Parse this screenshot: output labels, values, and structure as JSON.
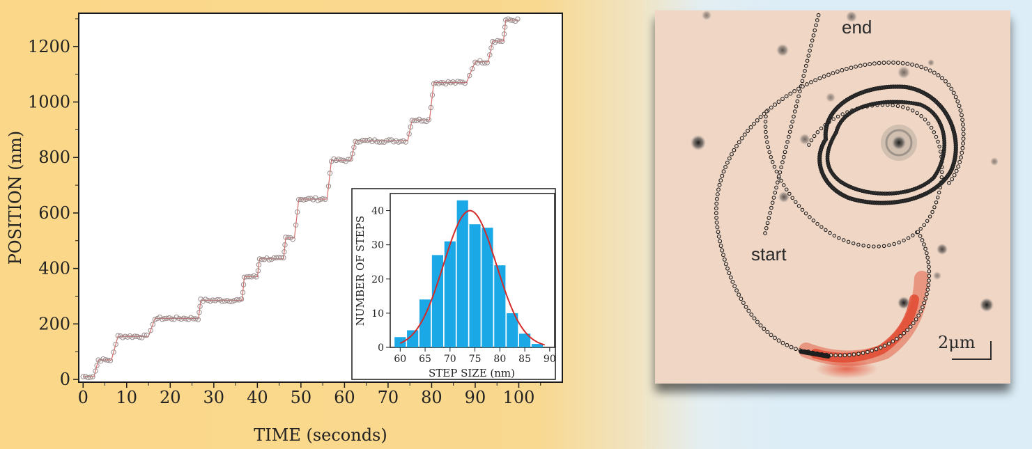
{
  "chart_data": [
    {
      "type": "scatter",
      "xlabel": "TIME (seconds)",
      "ylabel": "POSITION (nm)",
      "xlim": [
        -1,
        110
      ],
      "ylim": [
        -10,
        1320
      ],
      "xticks": [
        0,
        10,
        20,
        30,
        40,
        50,
        60,
        70,
        80,
        90,
        100
      ],
      "yticks": [
        0,
        200,
        400,
        600,
        800,
        1000,
        1200
      ],
      "colors": {
        "points": "#9a8a8a",
        "fit": "#d96a6a"
      },
      "plateaus": [
        {
          "t_start": 0,
          "t_end": 2.5,
          "position": 10
        },
        {
          "t_start": 3.5,
          "t_end": 6.5,
          "position": 70
        },
        {
          "t_start": 8,
          "t_end": 15,
          "position": 155
        },
        {
          "t_start": 16.5,
          "t_end": 26.5,
          "position": 220
        },
        {
          "t_start": 27,
          "t_end": 36.5,
          "position": 285
        },
        {
          "t_start": 37,
          "t_end": 40,
          "position": 370
        },
        {
          "t_start": 40.5,
          "t_end": 46,
          "position": 435
        },
        {
          "t_start": 46.5,
          "t_end": 48.5,
          "position": 510
        },
        {
          "t_start": 49.5,
          "t_end": 56,
          "position": 650
        },
        {
          "t_start": 57,
          "t_end": 61.5,
          "position": 790
        },
        {
          "t_start": 62.5,
          "t_end": 74.5,
          "position": 860
        },
        {
          "t_start": 75.5,
          "t_end": 79.5,
          "position": 935
        },
        {
          "t_start": 80.5,
          "t_end": 88,
          "position": 1070
        },
        {
          "t_start": 90,
          "t_end": 93,
          "position": 1145
        },
        {
          "t_start": 94,
          "t_end": 96.5,
          "position": 1220
        },
        {
          "t_start": 97,
          "t_end": 100,
          "position": 1295
        }
      ],
      "inset": {
        "type": "bar",
        "xlabel": "STEP SIZE (nm)",
        "ylabel": "NUMBER OF STEPS",
        "xlim": [
          58,
          91
        ],
        "ylim": [
          0,
          45
        ],
        "xticks": [
          60,
          65,
          70,
          75,
          80,
          85,
          90
        ],
        "yticks": [
          0,
          10,
          20,
          30,
          40
        ],
        "bar_width": 2.5,
        "bar_centers": [
          60,
          62.5,
          65,
          67.5,
          70,
          72.5,
          75,
          77.5,
          80,
          82.5,
          85,
          87.5
        ],
        "values": [
          3,
          5,
          14,
          27,
          31,
          43,
          36,
          35,
          24,
          10,
          4,
          1
        ],
        "fit": {
          "type": "gaussian",
          "mean": 74,
          "sigma": 5.3,
          "amplitude": 40
        },
        "colors": {
          "bars": "#1aa8e6",
          "fit": "#d42a2a"
        }
      }
    }
  ],
  "micrograph": {
    "label_end": "end",
    "label_start": "start",
    "scale_bar": "2μm"
  }
}
